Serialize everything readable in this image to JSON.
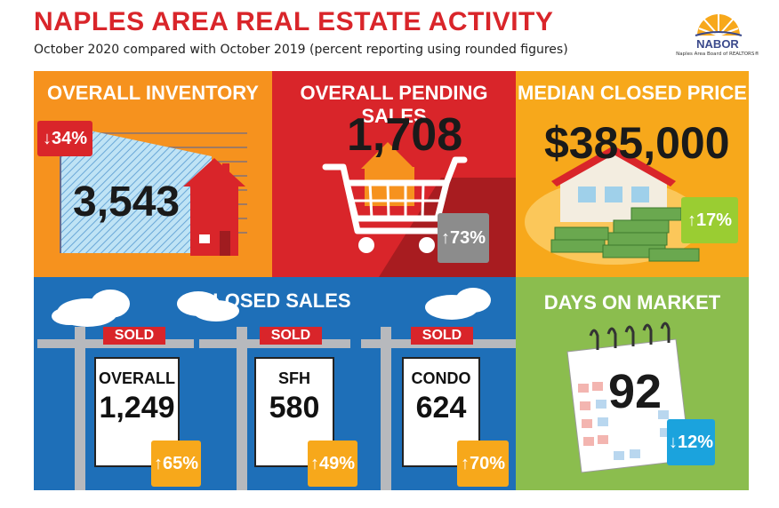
{
  "header": {
    "title": "NAPLES AREA REAL ESTATE ACTIVITY",
    "subtitle": "October 2020 compared with October 2019 (percent reporting using rounded figures)"
  },
  "logo": {
    "name": "NABOR",
    "tagline": "Naples Area Board of REALTORS®"
  },
  "panels": {
    "inventory": {
      "title": "OVERALL INVENTORY",
      "value": "3,543",
      "change": "34%",
      "direction": "down"
    },
    "pending": {
      "title": "OVERALL PENDING SALES",
      "value": "1,708",
      "change": "73%",
      "direction": "up"
    },
    "price": {
      "title": "MEDIAN CLOSED PRICE",
      "value": "$385,000",
      "change": "17%",
      "direction": "up"
    },
    "closed": {
      "title": "CLOSED SALES",
      "signs": [
        {
          "sold": "SOLD",
          "label": "OVERALL",
          "value": "1,249",
          "change": "65%"
        },
        {
          "sold": "SOLD",
          "label": "SFH",
          "value": "580",
          "change": "49%"
        },
        {
          "sold": "SOLD",
          "label": "CONDO",
          "value": "624",
          "change": "70%"
        }
      ]
    },
    "dom": {
      "title": "DAYS ON MARKET",
      "value": "92",
      "change": "12%",
      "direction": "down"
    }
  },
  "colors": {
    "red": "#d9252a",
    "orange": "#f6921e",
    "gold": "#f7a81b",
    "blue": "#1e6fb8",
    "green": "#8bbd4e",
    "gray_badge": "#8c8c8c",
    "lime_badge": "#9acd32",
    "cyan_badge": "#1ba3dd"
  },
  "icons": {
    "inventory": "house-chart-icon",
    "pending": "shopping-cart-icon",
    "price": "house-money-icon",
    "dom": "calendar-icon",
    "up": "arrow-up-icon",
    "down": "arrow-down-icon"
  }
}
